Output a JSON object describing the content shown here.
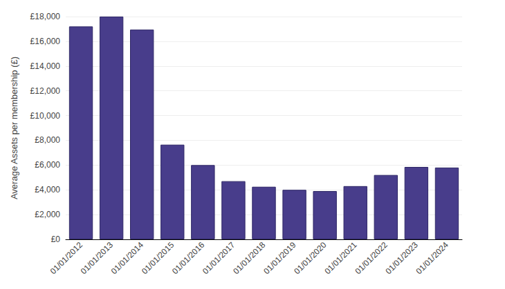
{
  "chart_data": {
    "type": "bar",
    "y_label": "Average Assets per membership (£)",
    "categories": [
      "01/01/2012",
      "01/01/2013",
      "01/01/2014",
      "01/01/2015",
      "01/01/2016",
      "01/01/2017",
      "01/01/2018",
      "01/01/2019",
      "01/01/2020",
      "01/01/2021",
      "01/01/2022",
      "01/01/2023",
      "01/01/2024"
    ],
    "values": [
      17200,
      18000,
      16950,
      7650,
      6000,
      4700,
      4250,
      4000,
      3900,
      4300,
      5200,
      5850,
      5800
    ],
    "color": "#483d8b",
    "ylim": [
      0,
      18000
    ],
    "yticks": [
      {
        "value": 0,
        "label": "£0"
      },
      {
        "value": 2000,
        "label": "£2,000"
      },
      {
        "value": 4000,
        "label": "£4,000"
      },
      {
        "value": 6000,
        "label": "£6,000"
      },
      {
        "value": 8000,
        "label": "£8,000"
      },
      {
        "value": 10000,
        "label": "£10,000"
      },
      {
        "value": 12000,
        "label": "£12,000"
      },
      {
        "value": 14000,
        "label": "£14,000"
      },
      {
        "value": 16000,
        "label": "£16,000"
      },
      {
        "value": 18000,
        "label": "£18,000"
      }
    ],
    "grid": true
  }
}
